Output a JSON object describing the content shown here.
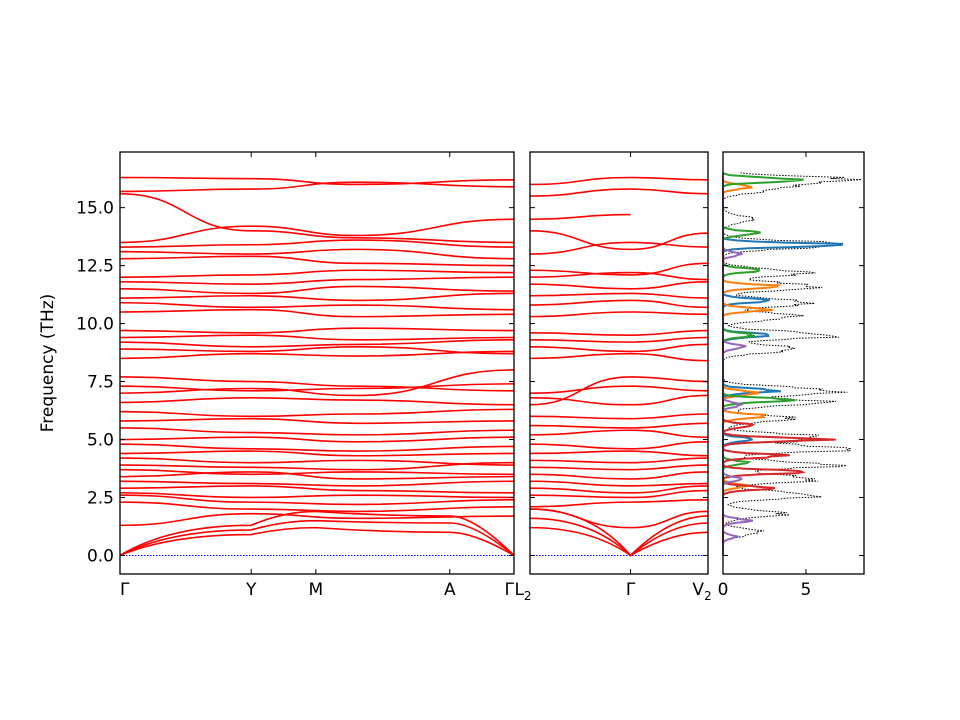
{
  "chart_data": [
    {
      "type": "line",
      "panel": "band-structure",
      "ylabel": "Frequency (THz)",
      "ylim": [
        -0.8,
        17.4
      ],
      "yticks": [
        0.0,
        2.5,
        5.0,
        7.5,
        10.0,
        12.5,
        15.0
      ],
      "ytick_labels": [
        "0.0",
        "2.5",
        "5.0",
        "7.5",
        "10.0",
        "12.5",
        "15.0"
      ],
      "xlim": [
        0,
        1
      ],
      "xticks": [
        0,
        0.333,
        0.497,
        0.837,
        1.0
      ],
      "xtick_labels": [
        "Γ",
        "Y",
        "M",
        "A",
        "Γ"
      ],
      "line_color": "#ff0000",
      "zero_line_color": "#0000ff",
      "segment_nodes": [
        0,
        0.333,
        0.497,
        0.837,
        1.0
      ],
      "optical_bands": [
        [
          16.3,
          16.25,
          16.0,
          16.2
        ],
        [
          15.7,
          15.8,
          16.1,
          15.9
        ],
        [
          15.6,
          14.0,
          13.7,
          13.5
        ],
        [
          13.5,
          14.2,
          13.8,
          14.5
        ],
        [
          13.3,
          13.4,
          13.6,
          13.3
        ],
        [
          13.1,
          13.0,
          13.2,
          12.8
        ],
        [
          12.8,
          12.9,
          12.6,
          12.5
        ],
        [
          12.0,
          12.1,
          12.3,
          12.2
        ],
        [
          11.8,
          11.7,
          11.9,
          12.0
        ],
        [
          11.5,
          11.3,
          11.6,
          11.4
        ],
        [
          11.1,
          11.2,
          11.0,
          11.3
        ],
        [
          10.9,
          10.7,
          10.8,
          10.6
        ],
        [
          10.5,
          10.6,
          10.3,
          10.4
        ],
        [
          9.7,
          9.6,
          9.8,
          9.7
        ],
        [
          9.4,
          9.5,
          9.3,
          9.4
        ],
        [
          9.2,
          9.0,
          9.1,
          9.3
        ],
        [
          8.9,
          8.8,
          9.0,
          8.7
        ],
        [
          8.5,
          8.7,
          8.6,
          8.8
        ],
        [
          7.7,
          7.5,
          7.3,
          7.1
        ],
        [
          7.3,
          7.1,
          7.2,
          7.4
        ],
        [
          7.0,
          7.2,
          6.9,
          8.0
        ],
        [
          6.6,
          6.8,
          6.7,
          6.5
        ],
        [
          6.2,
          6.0,
          6.1,
          6.3
        ],
        [
          5.8,
          5.9,
          5.7,
          5.8
        ],
        [
          5.5,
          5.3,
          5.2,
          5.4
        ],
        [
          5.0,
          5.1,
          4.9,
          5.1
        ],
        [
          4.8,
          4.6,
          4.5,
          4.7
        ],
        [
          4.4,
          4.5,
          4.3,
          4.4
        ],
        [
          4.2,
          4.0,
          4.1,
          3.9
        ],
        [
          3.9,
          3.8,
          3.7,
          4.0
        ],
        [
          3.7,
          3.5,
          3.6,
          3.5
        ],
        [
          3.4,
          3.6,
          3.3,
          3.4
        ],
        [
          3.2,
          3.1,
          3.0,
          3.2
        ],
        [
          2.9,
          3.0,
          2.8,
          2.7
        ],
        [
          2.7,
          2.5,
          2.6,
          2.5
        ],
        [
          2.6,
          2.3,
          2.2,
          2.4
        ],
        [
          2.3,
          2.0,
          1.9,
          2.1
        ],
        [
          1.3,
          1.8,
          1.6,
          1.7
        ]
      ],
      "acoustic_bands": [
        [
          0.0,
          1.3,
          1.9,
          1.7,
          0.0
        ],
        [
          0.0,
          1.1,
          1.5,
          1.4,
          0.0
        ],
        [
          0.0,
          0.9,
          1.2,
          1.0,
          0.0
        ]
      ]
    },
    {
      "type": "line",
      "panel": "band-structure-2",
      "ylim": [
        -0.8,
        17.4
      ],
      "xlim": [
        0,
        1
      ],
      "xticks": [
        0,
        0.5,
        1.0
      ],
      "xtick_labels": [
        "L2",
        "Γ",
        "V2"
      ],
      "line_color": "#ff0000",
      "zero_line_color": "#0000ff",
      "optical_bands": [
        [
          16.0,
          16.3,
          16.2
        ],
        [
          15.5,
          15.8,
          15.6
        ],
        [
          14.5,
          14.7,
          null
        ],
        [
          14.0,
          13.2,
          13.9
        ],
        [
          13.0,
          13.5,
          13.3
        ],
        [
          12.3,
          12.1,
          12.6
        ],
        [
          12.0,
          12.2,
          11.9
        ],
        [
          11.7,
          11.5,
          11.8
        ],
        [
          11.2,
          11.3,
          11.1
        ],
        [
          10.8,
          11.0,
          10.7
        ],
        [
          10.3,
          10.5,
          10.4
        ],
        [
          9.6,
          9.5,
          9.7
        ],
        [
          9.3,
          9.2,
          9.4
        ],
        [
          9.0,
          8.8,
          9.1
        ],
        [
          8.5,
          8.7,
          8.4
        ],
        [
          6.5,
          7.7,
          7.5
        ],
        [
          7.0,
          7.3,
          7.1
        ],
        [
          6.8,
          6.5,
          6.9
        ],
        [
          6.0,
          5.9,
          6.1
        ],
        [
          5.6,
          5.5,
          5.7
        ],
        [
          5.2,
          5.4,
          5.1
        ],
        [
          4.8,
          4.6,
          4.9
        ],
        [
          4.4,
          4.5,
          4.3
        ],
        [
          4.1,
          4.0,
          4.2
        ],
        [
          3.8,
          3.7,
          3.9
        ],
        [
          3.5,
          3.3,
          3.6
        ],
        [
          3.2,
          3.0,
          3.1
        ],
        [
          2.9,
          2.7,
          3.0
        ],
        [
          2.6,
          2.5,
          2.8
        ],
        [
          2.1,
          2.3,
          2.4
        ],
        [
          2.0,
          1.2,
          1.9
        ]
      ],
      "acoustic_bands": [
        [
          2.0,
          0.0,
          1.7
        ],
        [
          1.6,
          0.0,
          1.4
        ],
        [
          1.2,
          0.0,
          1.0
        ]
      ]
    },
    {
      "type": "line",
      "panel": "projected-dos",
      "ylim": [
        -0.8,
        17.4
      ],
      "xlim": [
        0,
        8.5
      ],
      "xticks": [
        0,
        5
      ],
      "xtick_labels": [
        "0",
        "5"
      ],
      "orientation": "horizontal",
      "total_color": "#000000",
      "series": [
        {
          "color": "#1f77b4",
          "peaks": [
            [
              13.4,
              7.7
            ],
            [
              11.0,
              3.0
            ],
            [
              9.5,
              3.2
            ],
            [
              7.1,
              3.5
            ],
            [
              5.0,
              2.0
            ]
          ]
        },
        {
          "color": "#ff7f0e",
          "peaks": [
            [
              15.9,
              2.0
            ],
            [
              11.6,
              3.5
            ],
            [
              10.6,
              2.8
            ],
            [
              7.0,
              2.5
            ],
            [
              6.0,
              3.0
            ],
            [
              3.0,
              1.5
            ]
          ]
        },
        {
          "color": "#2ca02c",
          "peaks": [
            [
              16.2,
              5.5
            ],
            [
              13.9,
              2.5
            ],
            [
              12.3,
              2.4
            ],
            [
              9.5,
              2.0
            ],
            [
              6.7,
              4.5
            ],
            [
              4.0,
              1.5
            ]
          ]
        },
        {
          "color": "#d62728",
          "peaks": [
            [
              5.0,
              6.2
            ],
            [
              4.3,
              3.9
            ],
            [
              3.6,
              5.3
            ],
            [
              2.9,
              3.1
            ],
            [
              5.6,
              2.0
            ]
          ]
        },
        {
          "color": "#9467bd",
          "peaks": [
            [
              13.0,
              1.2
            ],
            [
              9.0,
              1.5
            ],
            [
              6.5,
              1.3
            ],
            [
              3.3,
              1.2
            ],
            [
              1.5,
              1.7
            ],
            [
              0.8,
              0.8
            ]
          ]
        }
      ],
      "total_peaks": [
        [
          16.2,
          8.5
        ],
        [
          15.8,
          3.5
        ],
        [
          14.5,
          2.0
        ],
        [
          13.4,
          8.2
        ],
        [
          12.2,
          5.5
        ],
        [
          11.6,
          6.5
        ],
        [
          10.9,
          6.0
        ],
        [
          10.3,
          5.0
        ],
        [
          9.5,
          7.5
        ],
        [
          8.9,
          5.0
        ],
        [
          7.1,
          7.8
        ],
        [
          6.6,
          6.5
        ],
        [
          5.9,
          4.5
        ],
        [
          5.1,
          6.5
        ],
        [
          4.6,
          8.3
        ],
        [
          3.9,
          7.3
        ],
        [
          3.3,
          6.5
        ],
        [
          2.6,
          6.3
        ],
        [
          1.8,
          4.0
        ],
        [
          1.0,
          2.5
        ]
      ]
    }
  ]
}
